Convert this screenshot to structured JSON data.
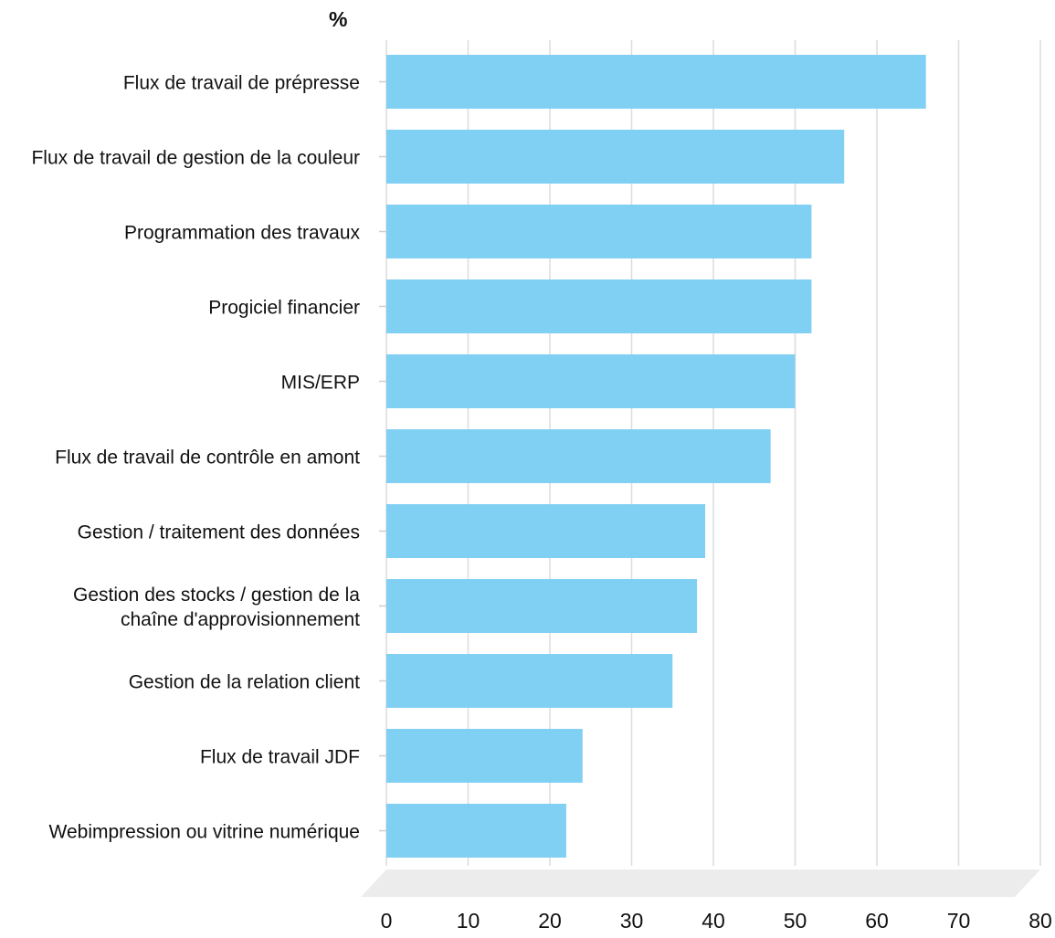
{
  "chart_data": {
    "type": "bar",
    "orientation": "horizontal",
    "unit_label": "%",
    "categories": [
      [
        "Flux de travail de prépresse"
      ],
      [
        "Flux de travail de gestion de la couleur"
      ],
      [
        "Programmation des travaux"
      ],
      [
        "Progiciel financier"
      ],
      [
        "MIS/ERP"
      ],
      [
        "Flux de travail de contrôle en amont"
      ],
      [
        "Gestion / traitement des données"
      ],
      [
        "Gestion des stocks / gestion de la",
        "chaîne d'approvisionnement"
      ],
      [
        "Gestion de la relation client"
      ],
      [
        "Flux de travail JDF"
      ],
      [
        "Webimpression ou vitrine numérique"
      ]
    ],
    "values": [
      66,
      56,
      52,
      52,
      50,
      47,
      39,
      38,
      35,
      24,
      22
    ],
    "xlim": [
      0,
      80
    ],
    "xticks": [
      "0",
      "10",
      "20",
      "30",
      "40",
      "50",
      "60",
      "70",
      "80"
    ],
    "grid": "vertical",
    "colors": {
      "bar": "#80d0f4",
      "grid": "#dcdcdc",
      "floor": "#ececec"
    }
  }
}
